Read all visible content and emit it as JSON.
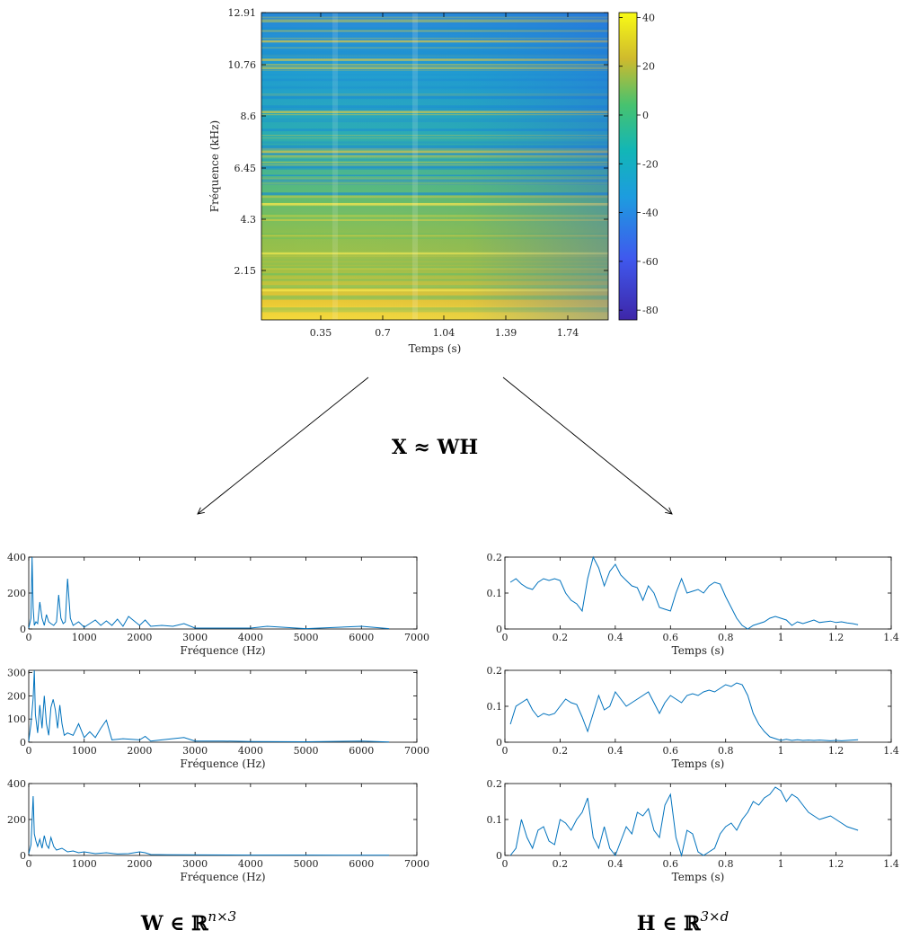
{
  "equation": "X ≈ WH",
  "w_label": {
    "main": "W ∈ ℝ",
    "sup": "n×3"
  },
  "h_label": {
    "main": "H ∈ ℝ",
    "sup": "3×d"
  },
  "spectrogram": {
    "ylabel": "Fréquence (kHz)",
    "xlabel": "Temps (s)",
    "yticks": [
      "2.15",
      "4.3",
      "6.45",
      "8.6",
      "10.76",
      "12.91"
    ],
    "xticks": [
      "0.35",
      "0.7",
      "1.04",
      "1.39",
      "1.74"
    ],
    "colorbar_ticks": [
      "40",
      "20",
      "0",
      "-20",
      "-40",
      "-60",
      "-80"
    ],
    "colorbar_range": [
      -84,
      42
    ]
  },
  "chart_data": [
    {
      "type": "line",
      "id": "W1",
      "xlabel": "Fréquence (Hz)",
      "xticks": [
        "0",
        "1000",
        "2000",
        "3000",
        "4000",
        "5000",
        "6000",
        "7000"
      ],
      "yticks": [
        "0",
        "200",
        "400"
      ],
      "xlim": [
        0,
        7000
      ],
      "ylim": [
        0,
        400
      ],
      "x": [
        0,
        40,
        60,
        80,
        100,
        130,
        160,
        200,
        240,
        280,
        320,
        360,
        400,
        450,
        500,
        540,
        580,
        620,
        660,
        700,
        750,
        800,
        900,
        1000,
        1100,
        1200,
        1300,
        1400,
        1500,
        1600,
        1700,
        1800,
        2000,
        2100,
        2200,
        2400,
        2600,
        2800,
        3000,
        3500,
        4000,
        4300,
        5000,
        6000,
        6500
      ],
      "values": [
        5,
        60,
        400,
        120,
        20,
        40,
        30,
        150,
        60,
        20,
        80,
        40,
        30,
        20,
        40,
        190,
        60,
        30,
        40,
        280,
        60,
        20,
        40,
        10,
        30,
        50,
        20,
        45,
        20,
        55,
        15,
        70,
        20,
        50,
        15,
        20,
        15,
        30,
        5,
        5,
        5,
        15,
        2,
        15,
        2
      ]
    },
    {
      "type": "line",
      "id": "W2",
      "xlabel": "Fréquence (Hz)",
      "xticks": [
        "0",
        "1000",
        "2000",
        "3000",
        "4000",
        "5000",
        "6000",
        "7000"
      ],
      "yticks": [
        "0",
        "100",
        "200",
        "300"
      ],
      "xlim": [
        0,
        7000
      ],
      "ylim": [
        0,
        310
      ],
      "x": [
        0,
        40,
        80,
        100,
        120,
        160,
        200,
        240,
        280,
        320,
        360,
        400,
        440,
        480,
        520,
        560,
        600,
        640,
        700,
        800,
        900,
        1000,
        1100,
        1200,
        1300,
        1400,
        1500,
        1700,
        2000,
        2100,
        2200,
        2400,
        2800,
        3000,
        3500,
        4000,
        5000,
        6000,
        6500
      ],
      "values": [
        5,
        80,
        190,
        310,
        120,
        40,
        160,
        60,
        200,
        80,
        30,
        150,
        185,
        140,
        60,
        160,
        80,
        30,
        40,
        30,
        80,
        20,
        45,
        20,
        60,
        95,
        10,
        15,
        10,
        25,
        5,
        10,
        20,
        5,
        5,
        3,
        2,
        5,
        1
      ]
    },
    {
      "type": "line",
      "id": "W3",
      "xlabel": "Fréquence (Hz)",
      "xticks": [
        "0",
        "1000",
        "2000",
        "3000",
        "4000",
        "5000",
        "6000",
        "7000"
      ],
      "yticks": [
        "0",
        "200",
        "400"
      ],
      "xlim": [
        0,
        7000
      ],
      "ylim": [
        0,
        400
      ],
      "x": [
        0,
        40,
        80,
        100,
        130,
        160,
        200,
        240,
        280,
        320,
        360,
        400,
        450,
        500,
        600,
        700,
        800,
        900,
        1000,
        1200,
        1400,
        1600,
        1800,
        2000,
        2100,
        2200,
        2500,
        3000,
        4000,
        5000,
        6000,
        6500
      ],
      "values": [
        10,
        60,
        330,
        120,
        80,
        50,
        90,
        40,
        110,
        60,
        40,
        100,
        50,
        30,
        40,
        20,
        25,
        15,
        20,
        10,
        15,
        8,
        10,
        20,
        15,
        5,
        4,
        3,
        2,
        2,
        1,
        1
      ]
    },
    {
      "type": "line",
      "id": "H1",
      "xlabel": "Temps (s)",
      "xticks": [
        "0",
        "0.2",
        "0.4",
        "0.6",
        "0.8",
        "1",
        "1.2",
        "1.4"
      ],
      "yticks": [
        "0",
        "0.1",
        "0.2"
      ],
      "xlim": [
        0,
        1.4
      ],
      "ylim": [
        0,
        0.2
      ],
      "x": [
        0.02,
        0.04,
        0.06,
        0.08,
        0.1,
        0.12,
        0.14,
        0.16,
        0.18,
        0.2,
        0.22,
        0.24,
        0.26,
        0.28,
        0.3,
        0.32,
        0.34,
        0.36,
        0.38,
        0.4,
        0.42,
        0.44,
        0.46,
        0.48,
        0.5,
        0.52,
        0.54,
        0.56,
        0.58,
        0.6,
        0.62,
        0.64,
        0.66,
        0.68,
        0.7,
        0.72,
        0.74,
        0.76,
        0.78,
        0.8,
        0.82,
        0.84,
        0.86,
        0.88,
        0.9,
        0.92,
        0.94,
        0.96,
        0.98,
        1.0,
        1.02,
        1.04,
        1.06,
        1.08,
        1.1,
        1.12,
        1.14,
        1.16,
        1.18,
        1.2,
        1.22,
        1.24,
        1.26,
        1.28
      ],
      "values": [
        0.13,
        0.14,
        0.125,
        0.115,
        0.11,
        0.13,
        0.14,
        0.135,
        0.14,
        0.135,
        0.1,
        0.08,
        0.07,
        0.05,
        0.14,
        0.2,
        0.17,
        0.12,
        0.16,
        0.18,
        0.15,
        0.135,
        0.12,
        0.115,
        0.08,
        0.12,
        0.1,
        0.06,
        0.055,
        0.05,
        0.1,
        0.14,
        0.1,
        0.105,
        0.11,
        0.1,
        0.12,
        0.13,
        0.125,
        0.09,
        0.06,
        0.03,
        0.01,
        0.0,
        0.01,
        0.015,
        0.02,
        0.03,
        0.035,
        0.03,
        0.025,
        0.01,
        0.02,
        0.015,
        0.02,
        0.025,
        0.018,
        0.02,
        0.022,
        0.018,
        0.02,
        0.017,
        0.015,
        0.012
      ]
    },
    {
      "type": "line",
      "id": "H2",
      "xlabel": "Temps (s)",
      "xticks": [
        "0",
        "0.2",
        "0.4",
        "0.6",
        "0.8",
        "1",
        "1.2",
        "1.4"
      ],
      "yticks": [
        "0",
        "0.1",
        "0.2"
      ],
      "xlim": [
        0,
        1.4
      ],
      "ylim": [
        0,
        0.2
      ],
      "x": [
        0.02,
        0.04,
        0.06,
        0.08,
        0.1,
        0.12,
        0.14,
        0.16,
        0.18,
        0.2,
        0.22,
        0.24,
        0.26,
        0.28,
        0.3,
        0.32,
        0.34,
        0.36,
        0.38,
        0.4,
        0.42,
        0.44,
        0.46,
        0.48,
        0.5,
        0.52,
        0.54,
        0.56,
        0.58,
        0.6,
        0.62,
        0.64,
        0.66,
        0.68,
        0.7,
        0.72,
        0.74,
        0.76,
        0.78,
        0.8,
        0.82,
        0.84,
        0.86,
        0.88,
        0.9,
        0.92,
        0.94,
        0.96,
        0.98,
        1.0,
        1.02,
        1.04,
        1.06,
        1.08,
        1.1,
        1.12,
        1.14,
        1.16,
        1.18,
        1.2,
        1.22,
        1.24,
        1.26,
        1.28
      ],
      "values": [
        0.05,
        0.1,
        0.11,
        0.12,
        0.09,
        0.07,
        0.08,
        0.075,
        0.08,
        0.1,
        0.12,
        0.11,
        0.105,
        0.07,
        0.03,
        0.08,
        0.13,
        0.09,
        0.1,
        0.14,
        0.12,
        0.1,
        0.11,
        0.12,
        0.13,
        0.14,
        0.11,
        0.08,
        0.11,
        0.13,
        0.12,
        0.11,
        0.13,
        0.135,
        0.13,
        0.14,
        0.145,
        0.14,
        0.15,
        0.16,
        0.155,
        0.165,
        0.16,
        0.13,
        0.08,
        0.05,
        0.03,
        0.015,
        0.01,
        0.005,
        0.008,
        0.005,
        0.007,
        0.005,
        0.006,
        0.005,
        0.006,
        0.005,
        0.004,
        0.005,
        0.004,
        0.005,
        0.006,
        0.007
      ]
    },
    {
      "type": "line",
      "id": "H3",
      "xlabel": "Temps (s)",
      "xticks": [
        "0",
        "0.2",
        "0.4",
        "0.6",
        "0.8",
        "1",
        "1.2",
        "1.4"
      ],
      "yticks": [
        "0",
        "0.1",
        "0.2"
      ],
      "xlim": [
        0,
        1.4
      ],
      "ylim": [
        0,
        0.2
      ],
      "x": [
        0.02,
        0.04,
        0.06,
        0.08,
        0.1,
        0.12,
        0.14,
        0.16,
        0.18,
        0.2,
        0.22,
        0.24,
        0.26,
        0.28,
        0.3,
        0.32,
        0.34,
        0.36,
        0.38,
        0.4,
        0.42,
        0.44,
        0.46,
        0.48,
        0.5,
        0.52,
        0.54,
        0.56,
        0.58,
        0.6,
        0.62,
        0.64,
        0.66,
        0.68,
        0.7,
        0.72,
        0.74,
        0.76,
        0.78,
        0.8,
        0.82,
        0.84,
        0.86,
        0.88,
        0.9,
        0.92,
        0.94,
        0.96,
        0.98,
        1.0,
        1.02,
        1.04,
        1.06,
        1.08,
        1.1,
        1.12,
        1.14,
        1.16,
        1.18,
        1.2,
        1.22,
        1.24,
        1.26,
        1.28
      ],
      "values": [
        0.0,
        0.02,
        0.1,
        0.05,
        0.02,
        0.07,
        0.08,
        0.04,
        0.03,
        0.1,
        0.09,
        0.07,
        0.1,
        0.12,
        0.16,
        0.05,
        0.02,
        0.08,
        0.02,
        0.0,
        0.04,
        0.08,
        0.06,
        0.12,
        0.11,
        0.13,
        0.07,
        0.05,
        0.14,
        0.17,
        0.05,
        0.0,
        0.07,
        0.06,
        0.01,
        0.0,
        0.01,
        0.02,
        0.06,
        0.08,
        0.09,
        0.07,
        0.1,
        0.12,
        0.15,
        0.14,
        0.16,
        0.17,
        0.19,
        0.18,
        0.15,
        0.17,
        0.16,
        0.14,
        0.12,
        0.11,
        0.1,
        0.105,
        0.11,
        0.1,
        0.09,
        0.08,
        0.075,
        0.07
      ]
    }
  ]
}
